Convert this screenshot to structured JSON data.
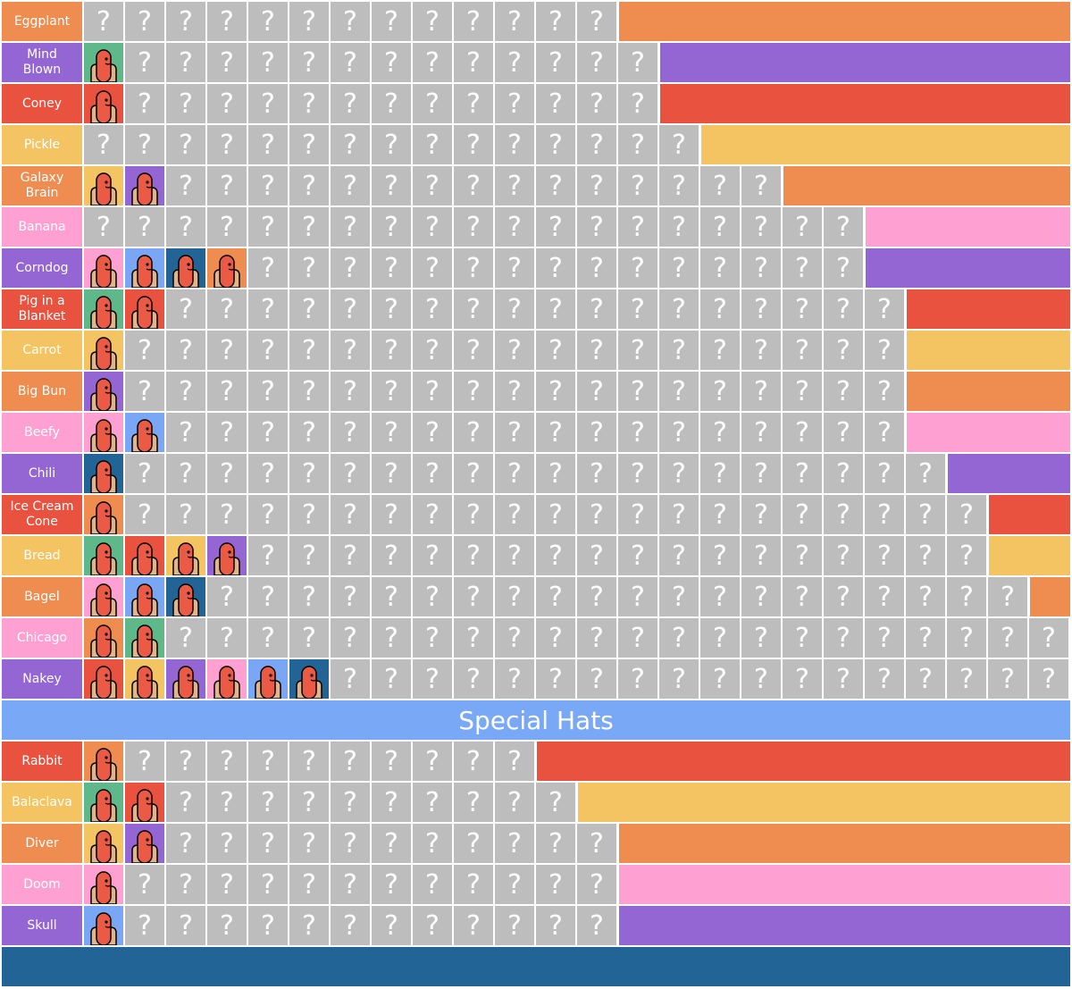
{
  "rows": [
    {
      "label": "Eggplant",
      "color": "#ef8c50",
      "cells": [
        "?",
        "?",
        "?",
        "?",
        "?",
        "?",
        "?",
        "?",
        "?",
        "?",
        "?",
        "?",
        "?"
      ]
    },
    {
      "label": "Mind Blown",
      "color": "#9366d4",
      "cells": [
        null,
        "?",
        "?",
        "?",
        "?",
        "?",
        "?",
        "?",
        "?",
        "?",
        "?",
        "?",
        "?",
        "?"
      ]
    },
    {
      "label": "Coney",
      "color": "#e8523f",
      "cells": [
        null,
        "?",
        "?",
        "?",
        "?",
        "?",
        "?",
        "?",
        "?",
        "?",
        "?",
        "?",
        "?",
        "?"
      ]
    },
    {
      "label": "Pickle",
      "color": "#f5c462",
      "cells": [
        "?",
        "?",
        "?",
        "?",
        "?",
        "?",
        "?",
        "?",
        "?",
        "?",
        "?",
        "?",
        "?",
        "?",
        "?"
      ]
    },
    {
      "label": "Galaxy Brain",
      "color": "#ef8c50",
      "cells": [
        null,
        null,
        "?",
        "?",
        "?",
        "?",
        "?",
        "?",
        "?",
        "?",
        "?",
        "?",
        "?",
        "?",
        "?",
        "?",
        "?"
      ]
    },
    {
      "label": "Banana",
      "color": "#ffa0d2",
      "cells": [
        "?",
        "?",
        "?",
        "?",
        "?",
        "?",
        "?",
        "?",
        "?",
        "?",
        "?",
        "?",
        "?",
        "?",
        "?",
        "?",
        "?",
        "?",
        "?"
      ]
    },
    {
      "label": "Corndog",
      "color": "#9366d4",
      "cells": [
        null,
        null,
        null,
        null,
        "?",
        "?",
        "?",
        "?",
        "?",
        "?",
        "?",
        "?",
        "?",
        "?",
        "?",
        "?",
        "?",
        "?",
        "?"
      ]
    },
    {
      "label": "Pig in a Blanket",
      "color": "#e8523f",
      "cells": [
        null,
        null,
        "?",
        "?",
        "?",
        "?",
        "?",
        "?",
        "?",
        "?",
        "?",
        "?",
        "?",
        "?",
        "?",
        "?",
        "?",
        "?",
        "?",
        "?"
      ]
    },
    {
      "label": "Carrot",
      "color": "#f5c462",
      "cells": [
        null,
        "?",
        "?",
        "?",
        "?",
        "?",
        "?",
        "?",
        "?",
        "?",
        "?",
        "?",
        "?",
        "?",
        "?",
        "?",
        "?",
        "?",
        "?",
        "?"
      ]
    },
    {
      "label": "Big Bun",
      "color": "#ef8c50",
      "cells": [
        null,
        "?",
        "?",
        "?",
        "?",
        "?",
        "?",
        "?",
        "?",
        "?",
        "?",
        "?",
        "?",
        "?",
        "?",
        "?",
        "?",
        "?",
        "?",
        "?"
      ]
    },
    {
      "label": "Beefy",
      "color": "#ffa0d2",
      "cells": [
        null,
        null,
        "?",
        "?",
        "?",
        "?",
        "?",
        "?",
        "?",
        "?",
        "?",
        "?",
        "?",
        "?",
        "?",
        "?",
        "?",
        "?",
        "?",
        "?"
      ]
    },
    {
      "label": "Chili",
      "color": "#9366d4",
      "cells": [
        null,
        "?",
        "?",
        "?",
        "?",
        "?",
        "?",
        "?",
        "?",
        "?",
        "?",
        "?",
        "?",
        "?",
        "?",
        "?",
        "?",
        "?",
        "?",
        "?",
        "?"
      ]
    },
    {
      "label": "Ice Cream Cone",
      "color": "#e8523f",
      "cells": [
        null,
        "?",
        "?",
        "?",
        "?",
        "?",
        "?",
        "?",
        "?",
        "?",
        "?",
        "?",
        "?",
        "?",
        "?",
        "?",
        "?",
        "?",
        "?",
        "?",
        "?",
        "?"
      ]
    },
    {
      "label": "Bread",
      "color": "#f5c462",
      "cells": [
        null,
        null,
        null,
        null,
        "?",
        "?",
        "?",
        "?",
        "?",
        "?",
        "?",
        "?",
        "?",
        "?",
        "?",
        "?",
        "?",
        "?",
        "?",
        "?",
        "?",
        "?"
      ]
    },
    {
      "label": "Bagel",
      "color": "#ef8c50",
      "cells": [
        null,
        null,
        null,
        "?",
        "?",
        "?",
        "?",
        "?",
        "?",
        "?",
        "?",
        "?",
        "?",
        "?",
        "?",
        "?",
        "?",
        "?",
        "?",
        "?",
        "?",
        "?",
        "?"
      ]
    },
    {
      "label": "Chicago",
      "color": "#ffa0d2",
      "cells": [
        null,
        null,
        "?",
        "?",
        "?",
        "?",
        "?",
        "?",
        "?",
        "?",
        "?",
        "?",
        "?",
        "?",
        "?",
        "?",
        "?",
        "?",
        "?",
        "?",
        "?",
        "?",
        "?",
        "?"
      ]
    },
    {
      "label": "Nakey",
      "color": "#9366d4",
      "cells": [
        null,
        null,
        null,
        null,
        null,
        null,
        "?",
        "?",
        "?",
        "?",
        "?",
        "?",
        "?",
        "?",
        "?",
        "?",
        "?",
        "?",
        "?",
        "?",
        "?",
        "?",
        "?",
        "?"
      ]
    }
  ],
  "section_title": "Special Hats",
  "special_rows": [
    {
      "label": "Rabbit",
      "color": "#e8523f",
      "cells": [
        null,
        "?",
        "?",
        "?",
        "?",
        "?",
        "?",
        "?",
        "?",
        "?",
        "?"
      ]
    },
    {
      "label": "Balaclava",
      "color": "#f5c462",
      "cells": [
        null,
        null,
        "?",
        "?",
        "?",
        "?",
        "?",
        "?",
        "?",
        "?",
        "?",
        "?"
      ]
    },
    {
      "label": "Diver",
      "color": "#ef8c50",
      "cells": [
        null,
        null,
        "?",
        "?",
        "?",
        "?",
        "?",
        "?",
        "?",
        "?",
        "?",
        "?",
        "?"
      ]
    },
    {
      "label": "Doom",
      "color": "#ffa0d2",
      "cells": [
        null,
        "?",
        "?",
        "?",
        "?",
        "?",
        "?",
        "?",
        "?",
        "?",
        "?",
        "?",
        "?"
      ]
    },
    {
      "label": "Skull",
      "color": "#9366d4",
      "cells": [
        null,
        "?",
        "?",
        "?",
        "?",
        "?",
        "?",
        "?",
        "?",
        "?",
        "?",
        "?",
        "?"
      ]
    }
  ]
}
